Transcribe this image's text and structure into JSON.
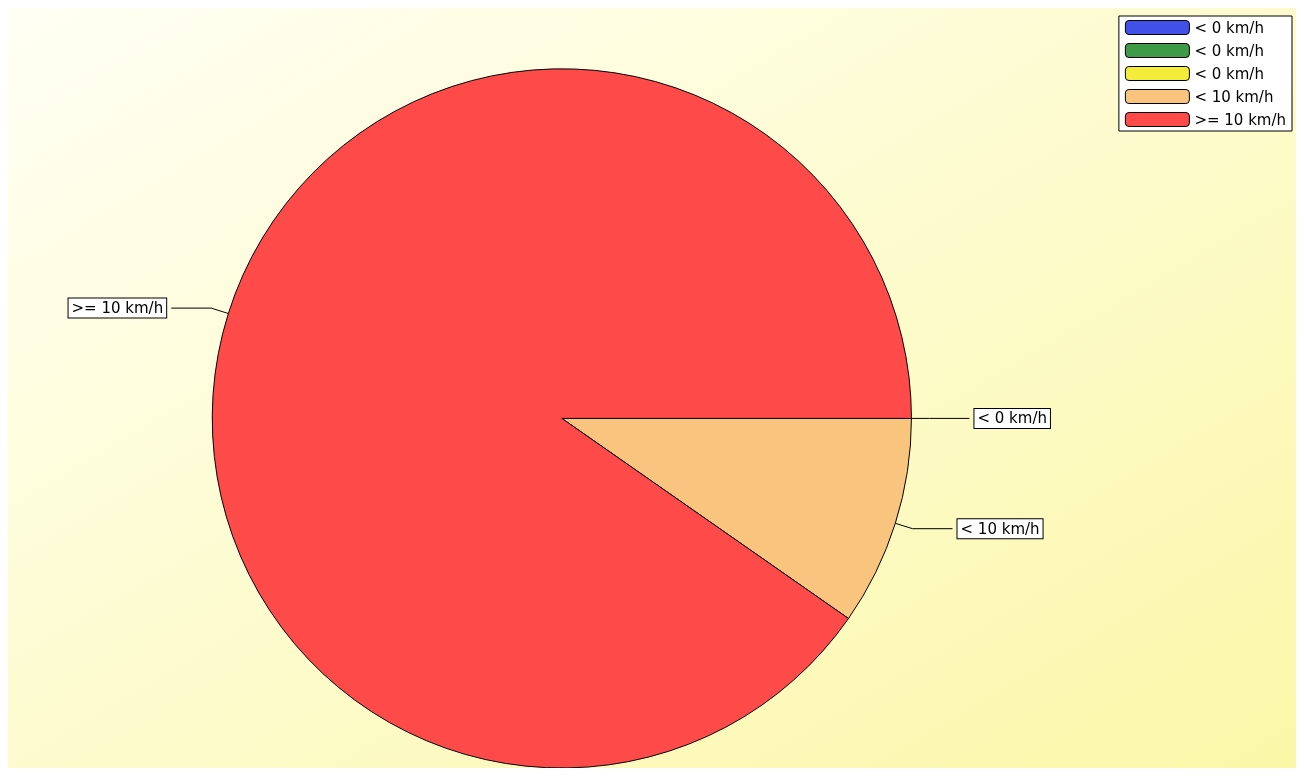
{
  "chart_data": {
    "type": "pie",
    "categories": [
      "< 0 km/h",
      "< 0 km/h",
      "< 0 km/h",
      "< 10 km/h",
      ">= 10 km/h"
    ],
    "values": [
      0,
      0,
      0,
      9.7,
      90.3
    ],
    "colors": [
      "#4050e8",
      "#3f9a48",
      "#f4ec3a",
      "#f8c47e",
      "#ff4a4a"
    ],
    "legend": "top right"
  }
}
